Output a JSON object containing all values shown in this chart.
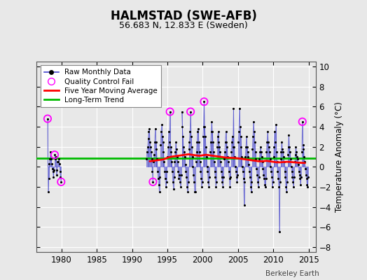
{
  "title": "HALMSTAD (SWE-AFB)",
  "subtitle": "56.683 N, 12.833 E (Sweden)",
  "ylabel": "Temperature Anomaly (°C)",
  "watermark": "Berkeley Earth",
  "xlim": [
    1976.5,
    2016.0
  ],
  "ylim": [
    -8.5,
    10.5
  ],
  "yticks": [
    -8,
    -6,
    -4,
    -2,
    0,
    2,
    4,
    6,
    8,
    10
  ],
  "xticks": [
    1980,
    1985,
    1990,
    1995,
    2000,
    2005,
    2010,
    2015
  ],
  "background_color": "#e8e8e8",
  "plot_bg_color": "#e8e8e8",
  "grid_color": "#ffffff",
  "raw_line_color": "#4444cc",
  "raw_dot_color": "#000000",
  "moving_avg_color": "#ff0000",
  "trend_color": "#00bb00",
  "qc_fail_color": "#ff00ff",
  "trend_value": 0.88,
  "raw_data": [
    [
      1978.042,
      4.8
    ],
    [
      1978.125,
      -2.5
    ],
    [
      1978.208,
      -1.2
    ],
    [
      1978.292,
      0.3
    ],
    [
      1978.375,
      0.8
    ],
    [
      1978.458,
      1.5
    ],
    [
      1978.542,
      0.8
    ],
    [
      1978.625,
      0.3
    ],
    [
      1978.708,
      -0.2
    ],
    [
      1978.792,
      -0.5
    ],
    [
      1978.875,
      -1.0
    ],
    [
      1978.958,
      -0.3
    ],
    [
      1979.042,
      1.2
    ],
    [
      1979.125,
      0.8
    ],
    [
      1979.208,
      1.0
    ],
    [
      1979.292,
      -0.8
    ],
    [
      1979.375,
      -0.3
    ],
    [
      1979.458,
      0.5
    ],
    [
      1979.542,
      0.5
    ],
    [
      1979.625,
      0.8
    ],
    [
      1979.708,
      0.3
    ],
    [
      1979.792,
      -0.5
    ],
    [
      1979.875,
      -1.0
    ],
    [
      1979.958,
      -1.5
    ],
    [
      1992.042,
      0.8
    ],
    [
      1992.125,
      1.5
    ],
    [
      1992.208,
      2.0
    ],
    [
      1992.292,
      2.8
    ],
    [
      1992.375,
      3.5
    ],
    [
      1992.458,
      3.8
    ],
    [
      1992.542,
      2.5
    ],
    [
      1992.625,
      2.0
    ],
    [
      1992.708,
      1.5
    ],
    [
      1992.792,
      0.8
    ],
    [
      1992.875,
      -0.5
    ],
    [
      1992.958,
      -1.5
    ],
    [
      1993.042,
      0.5
    ],
    [
      1993.125,
      1.2
    ],
    [
      1993.208,
      2.5
    ],
    [
      1993.292,
      3.8
    ],
    [
      1993.375,
      2.5
    ],
    [
      1993.458,
      1.8
    ],
    [
      1993.542,
      0.8
    ],
    [
      1993.625,
      -0.5
    ],
    [
      1993.708,
      -1.2
    ],
    [
      1993.792,
      -1.8
    ],
    [
      1993.875,
      -2.5
    ],
    [
      1993.958,
      -1.0
    ],
    [
      1994.042,
      2.2
    ],
    [
      1994.125,
      3.5
    ],
    [
      1994.208,
      4.2
    ],
    [
      1994.292,
      3.0
    ],
    [
      1994.375,
      2.5
    ],
    [
      1994.458,
      1.5
    ],
    [
      1994.542,
      0.5
    ],
    [
      1994.625,
      -0.5
    ],
    [
      1994.708,
      -1.2
    ],
    [
      1994.792,
      -2.0
    ],
    [
      1994.875,
      -1.5
    ],
    [
      1994.958,
      -0.5
    ],
    [
      1995.042,
      1.0
    ],
    [
      1995.125,
      2.0
    ],
    [
      1995.208,
      3.5
    ],
    [
      1995.292,
      2.5
    ],
    [
      1995.375,
      5.5
    ],
    [
      1995.458,
      2.0
    ],
    [
      1995.542,
      1.5
    ],
    [
      1995.625,
      0.5
    ],
    [
      1995.708,
      -0.5
    ],
    [
      1995.792,
      -1.5
    ],
    [
      1995.875,
      -2.2
    ],
    [
      1995.958,
      -1.0
    ],
    [
      1996.042,
      0.5
    ],
    [
      1996.125,
      1.5
    ],
    [
      1996.208,
      2.5
    ],
    [
      1996.292,
      1.8
    ],
    [
      1996.375,
      1.0
    ],
    [
      1996.458,
      0.5
    ],
    [
      1996.542,
      -0.5
    ],
    [
      1996.625,
      -1.2
    ],
    [
      1996.708,
      -0.8
    ],
    [
      1996.792,
      -1.5
    ],
    [
      1996.875,
      -2.0
    ],
    [
      1996.958,
      -0.8
    ],
    [
      1997.042,
      5.5
    ],
    [
      1997.125,
      4.0
    ],
    [
      1997.208,
      3.0
    ],
    [
      1997.292,
      2.0
    ],
    [
      1997.375,
      1.5
    ],
    [
      1997.458,
      1.0
    ],
    [
      1997.542,
      0.2
    ],
    [
      1997.625,
      -0.5
    ],
    [
      1997.708,
      -1.0
    ],
    [
      1997.792,
      -2.0
    ],
    [
      1997.875,
      -2.5
    ],
    [
      1997.958,
      -1.5
    ],
    [
      1998.042,
      1.8
    ],
    [
      1998.125,
      2.5
    ],
    [
      1998.208,
      3.5
    ],
    [
      1998.292,
      5.5
    ],
    [
      1998.375,
      3.0
    ],
    [
      1998.458,
      2.0
    ],
    [
      1998.542,
      1.0
    ],
    [
      1998.625,
      0.0
    ],
    [
      1998.708,
      -0.8
    ],
    [
      1998.792,
      -1.5
    ],
    [
      1998.875,
      -2.5
    ],
    [
      1998.958,
      -2.5
    ],
    [
      1999.042,
      0.5
    ],
    [
      1999.125,
      1.5
    ],
    [
      1999.208,
      2.5
    ],
    [
      1999.292,
      3.5
    ],
    [
      1999.375,
      3.8
    ],
    [
      1999.458,
      2.5
    ],
    [
      1999.542,
      1.5
    ],
    [
      1999.625,
      0.5
    ],
    [
      1999.708,
      -0.5
    ],
    [
      1999.792,
      -1.2
    ],
    [
      1999.875,
      -2.0
    ],
    [
      1999.958,
      -1.5
    ],
    [
      2000.042,
      3.0
    ],
    [
      2000.125,
      4.0
    ],
    [
      2000.208,
      6.5
    ],
    [
      2000.292,
      4.0
    ],
    [
      2000.375,
      3.0
    ],
    [
      2000.458,
      2.0
    ],
    [
      2000.542,
      1.0
    ],
    [
      2000.625,
      0.0
    ],
    [
      2000.708,
      -0.5
    ],
    [
      2000.792,
      -1.5
    ],
    [
      2000.875,
      -2.0
    ],
    [
      2000.958,
      -1.0
    ],
    [
      2001.042,
      1.5
    ],
    [
      2001.125,
      2.5
    ],
    [
      2001.208,
      3.5
    ],
    [
      2001.292,
      4.5
    ],
    [
      2001.375,
      3.5
    ],
    [
      2001.458,
      2.5
    ],
    [
      2001.542,
      1.5
    ],
    [
      2001.625,
      0.5
    ],
    [
      2001.708,
      -0.5
    ],
    [
      2001.792,
      -1.0
    ],
    [
      2001.875,
      -2.0
    ],
    [
      2001.958,
      -1.5
    ],
    [
      2002.042,
      2.0
    ],
    [
      2002.125,
      3.0
    ],
    [
      2002.208,
      3.5
    ],
    [
      2002.292,
      2.5
    ],
    [
      2002.375,
      2.0
    ],
    [
      2002.458,
      1.5
    ],
    [
      2002.542,
      0.5
    ],
    [
      2002.625,
      -0.5
    ],
    [
      2002.708,
      -1.0
    ],
    [
      2002.792,
      -1.5
    ],
    [
      2002.875,
      -2.0
    ],
    [
      2002.958,
      -1.0
    ],
    [
      2003.042,
      0.8
    ],
    [
      2003.125,
      1.5
    ],
    [
      2003.208,
      2.5
    ],
    [
      2003.292,
      3.5
    ],
    [
      2003.375,
      2.5
    ],
    [
      2003.458,
      2.0
    ],
    [
      2003.542,
      1.0
    ],
    [
      2003.625,
      0.5
    ],
    [
      2003.708,
      -0.5
    ],
    [
      2003.792,
      -1.2
    ],
    [
      2003.875,
      -2.0
    ],
    [
      2003.958,
      -1.0
    ],
    [
      2004.042,
      1.5
    ],
    [
      2004.125,
      2.5
    ],
    [
      2004.208,
      3.0
    ],
    [
      2004.292,
      2.0
    ],
    [
      2004.375,
      5.8
    ],
    [
      2004.458,
      2.0
    ],
    [
      2004.542,
      1.0
    ],
    [
      2004.625,
      0.0
    ],
    [
      2004.708,
      -0.5
    ],
    [
      2004.792,
      -1.0
    ],
    [
      2004.875,
      -1.5
    ],
    [
      2004.958,
      -0.8
    ],
    [
      2005.042,
      2.5
    ],
    [
      2005.125,
      3.5
    ],
    [
      2005.208,
      5.8
    ],
    [
      2005.292,
      4.0
    ],
    [
      2005.375,
      3.0
    ],
    [
      2005.458,
      2.0
    ],
    [
      2005.542,
      1.0
    ],
    [
      2005.625,
      0.0
    ],
    [
      2005.708,
      -0.5
    ],
    [
      2005.792,
      -1.2
    ],
    [
      2005.875,
      -3.8
    ],
    [
      2005.958,
      -1.5
    ],
    [
      2006.042,
      1.0
    ],
    [
      2006.125,
      2.0
    ],
    [
      2006.208,
      3.0
    ],
    [
      2006.292,
      2.0
    ],
    [
      2006.375,
      1.5
    ],
    [
      2006.458,
      1.0
    ],
    [
      2006.542,
      0.2
    ],
    [
      2006.625,
      -0.5
    ],
    [
      2006.708,
      -1.0
    ],
    [
      2006.792,
      -2.0
    ],
    [
      2006.875,
      -2.5
    ],
    [
      2006.958,
      -1.5
    ],
    [
      2007.042,
      1.8
    ],
    [
      2007.125,
      3.0
    ],
    [
      2007.208,
      4.5
    ],
    [
      2007.292,
      3.5
    ],
    [
      2007.375,
      2.5
    ],
    [
      2007.458,
      1.5
    ],
    [
      2007.542,
      0.8
    ],
    [
      2007.625,
      -0.2
    ],
    [
      2007.708,
      -0.8
    ],
    [
      2007.792,
      -1.5
    ],
    [
      2007.875,
      -2.0
    ],
    [
      2007.958,
      -1.0
    ],
    [
      2008.042,
      0.8
    ],
    [
      2008.125,
      1.5
    ],
    [
      2008.208,
      2.0
    ],
    [
      2008.292,
      1.5
    ],
    [
      2008.375,
      1.0
    ],
    [
      2008.458,
      0.5
    ],
    [
      2008.542,
      -0.2
    ],
    [
      2008.625,
      -0.8
    ],
    [
      2008.708,
      -1.2
    ],
    [
      2008.792,
      -1.8
    ],
    [
      2008.875,
      -2.0
    ],
    [
      2008.958,
      -1.2
    ],
    [
      2009.042,
      1.5
    ],
    [
      2009.125,
      2.5
    ],
    [
      2009.208,
      3.5
    ],
    [
      2009.292,
      2.5
    ],
    [
      2009.375,
      2.0
    ],
    [
      2009.458,
      1.5
    ],
    [
      2009.542,
      0.8
    ],
    [
      2009.625,
      0.0
    ],
    [
      2009.708,
      -0.5
    ],
    [
      2009.792,
      -1.0
    ],
    [
      2009.875,
      -2.0
    ],
    [
      2009.958,
      -1.5
    ],
    [
      2010.042,
      1.0
    ],
    [
      2010.125,
      2.0
    ],
    [
      2010.208,
      3.5
    ],
    [
      2010.292,
      2.5
    ],
    [
      2010.375,
      4.2
    ],
    [
      2010.458,
      1.5
    ],
    [
      2010.542,
      0.5
    ],
    [
      2010.625,
      -0.5
    ],
    [
      2010.708,
      -1.2
    ],
    [
      2010.792,
      -2.0
    ],
    [
      2010.875,
      -6.5
    ],
    [
      2010.958,
      -1.5
    ],
    [
      2011.042,
      0.8
    ],
    [
      2011.125,
      1.5
    ],
    [
      2011.208,
      2.5
    ],
    [
      2011.292,
      1.8
    ],
    [
      2011.375,
      1.5
    ],
    [
      2011.458,
      1.0
    ],
    [
      2011.542,
      0.5
    ],
    [
      2011.625,
      -0.5
    ],
    [
      2011.708,
      -1.0
    ],
    [
      2011.792,
      -2.0
    ],
    [
      2011.875,
      -2.5
    ],
    [
      2011.958,
      -1.5
    ],
    [
      2012.042,
      1.2
    ],
    [
      2012.125,
      2.0
    ],
    [
      2012.208,
      3.2
    ],
    [
      2012.292,
      2.0
    ],
    [
      2012.375,
      1.5
    ],
    [
      2012.458,
      0.8
    ],
    [
      2012.542,
      0.0
    ],
    [
      2012.625,
      -0.5
    ],
    [
      2012.708,
      -1.0
    ],
    [
      2012.792,
      -1.5
    ],
    [
      2012.875,
      -2.0
    ],
    [
      2012.958,
      -1.0
    ],
    [
      2013.042,
      0.5
    ],
    [
      2013.125,
      1.2
    ],
    [
      2013.208,
      2.0
    ],
    [
      2013.292,
      1.5
    ],
    [
      2013.375,
      1.0
    ],
    [
      2013.458,
      0.8
    ],
    [
      2013.542,
      0.2
    ],
    [
      2013.625,
      -0.5
    ],
    [
      2013.708,
      -0.8
    ],
    [
      2013.792,
      -1.2
    ],
    [
      2013.875,
      -1.8
    ],
    [
      2013.958,
      -1.0
    ],
    [
      2014.042,
      1.5
    ],
    [
      2014.125,
      4.5
    ],
    [
      2014.208,
      2.2
    ],
    [
      2014.292,
      1.8
    ],
    [
      2014.375,
      1.0
    ],
    [
      2014.458,
      0.5
    ],
    [
      2014.542,
      -0.2
    ],
    [
      2014.625,
      -0.8
    ],
    [
      2014.708,
      -1.2
    ],
    [
      2014.792,
      -1.8
    ],
    [
      2014.875,
      -2.0
    ],
    [
      2014.958,
      -1.0
    ]
  ],
  "qc_fail_points": [
    [
      1978.042,
      4.8
    ],
    [
      1979.042,
      1.2
    ],
    [
      1979.958,
      -1.5
    ],
    [
      1992.958,
      -1.5
    ],
    [
      1995.375,
      5.5
    ],
    [
      1998.292,
      5.5
    ],
    [
      2000.208,
      6.5
    ],
    [
      2014.125,
      4.5
    ]
  ],
  "moving_avg": [
    [
      1992.5,
      0.55
    ],
    [
      1993.0,
      0.6
    ],
    [
      1993.5,
      0.65
    ],
    [
      1994.0,
      0.7
    ],
    [
      1994.5,
      0.75
    ],
    [
      1995.0,
      0.9
    ],
    [
      1995.5,
      1.0
    ],
    [
      1996.0,
      1.05
    ],
    [
      1996.5,
      1.1
    ],
    [
      1997.0,
      1.15
    ],
    [
      1997.5,
      1.2
    ],
    [
      1998.0,
      1.25
    ],
    [
      1998.5,
      1.2
    ],
    [
      1999.0,
      1.15
    ],
    [
      1999.5,
      1.1
    ],
    [
      2000.0,
      1.15
    ],
    [
      2000.5,
      1.2
    ],
    [
      2001.0,
      1.15
    ],
    [
      2001.5,
      1.1
    ],
    [
      2002.0,
      1.05
    ],
    [
      2002.5,
      1.0
    ],
    [
      2003.0,
      0.95
    ],
    [
      2003.5,
      0.9
    ],
    [
      2004.0,
      0.9
    ],
    [
      2004.5,
      0.88
    ],
    [
      2005.0,
      0.85
    ],
    [
      2005.5,
      0.8
    ],
    [
      2006.0,
      0.75
    ],
    [
      2006.5,
      0.7
    ],
    [
      2007.0,
      0.65
    ],
    [
      2007.5,
      0.6
    ],
    [
      2008.0,
      0.55
    ],
    [
      2008.5,
      0.55
    ],
    [
      2009.0,
      0.6
    ],
    [
      2009.5,
      0.55
    ],
    [
      2010.0,
      0.5
    ],
    [
      2010.5,
      0.45
    ],
    [
      2011.0,
      0.45
    ],
    [
      2011.5,
      0.48
    ],
    [
      2012.0,
      0.5
    ],
    [
      2012.5,
      0.48
    ],
    [
      2013.0,
      0.45
    ],
    [
      2013.5,
      0.42
    ],
    [
      2014.0,
      0.4
    ],
    [
      2014.5,
      0.38
    ]
  ]
}
